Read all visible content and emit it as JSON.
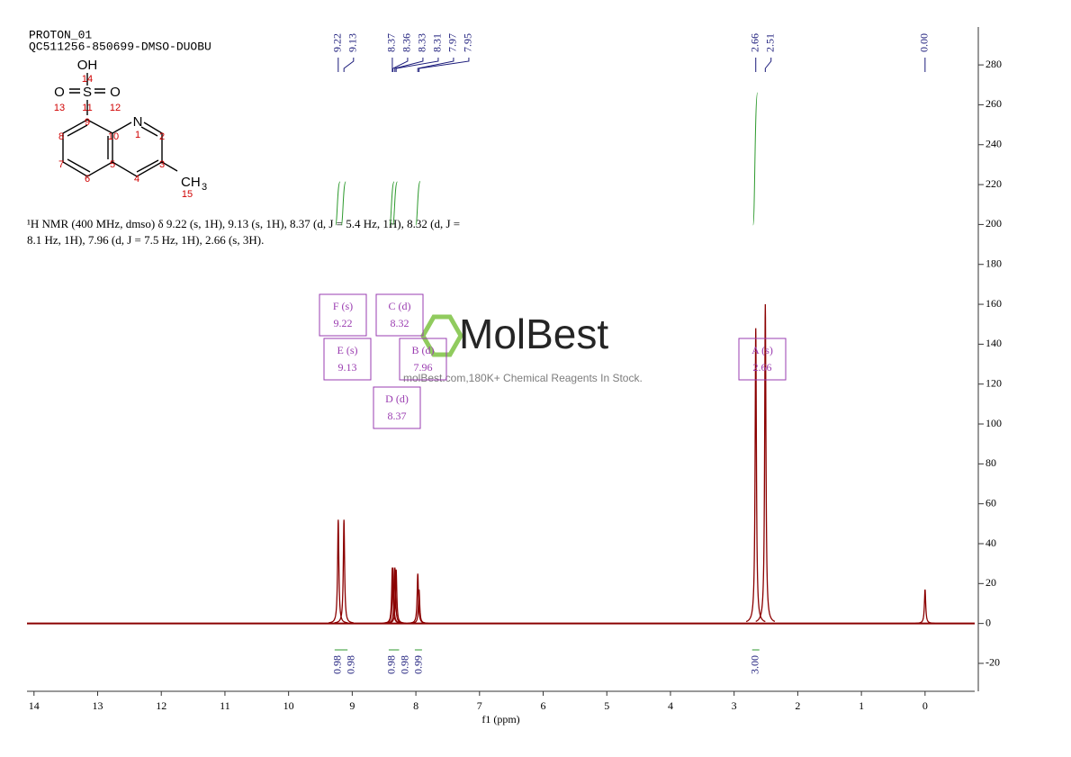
{
  "header": {
    "title": "PROTON_01",
    "subtitle": "QC511256-850699-DMSO-DUOBU"
  },
  "description": {
    "lines": [
      "¹H NMR (400 MHz, dmso) δ 9.22 (s, 1H), 9.13 (s, 1H), 8.37 (d, J = 5.4 Hz, 1H), 8.32 (d, J =",
      "8.1 Hz, 1H), 7.96 (d, J = 7.5 Hz, 1H), 2.66 (s, 3H)."
    ]
  },
  "structure": {
    "atoms": [
      "OH",
      "S",
      "O",
      "O",
      "N",
      "CH",
      "3"
    ],
    "numbers": [
      14,
      11,
      13,
      12,
      9,
      10,
      1,
      2,
      8,
      7,
      5,
      3,
      6,
      4,
      15
    ]
  },
  "watermark": {
    "brand": "MolBest",
    "tagline": "molBest.com,180K+ Chemical Reagents In Stock."
  },
  "chart_data": {
    "type": "nmr",
    "xlabel": "f1 (ppm)",
    "xlim": [
      14.11,
      -0.78
    ],
    "xticks": [
      14,
      13,
      12,
      11,
      10,
      9,
      8,
      7,
      6,
      5,
      4,
      3,
      2,
      1,
      0
    ],
    "ylim": [
      -34,
      299
    ],
    "yticks": [
      -20,
      0,
      20,
      40,
      60,
      80,
      100,
      120,
      140,
      160,
      180,
      200,
      220,
      240,
      260,
      280
    ],
    "peaks": {
      "x": [
        9.22,
        9.13,
        8.37,
        8.36,
        8.33,
        8.31,
        7.97,
        7.95,
        2.66,
        2.51,
        0
      ],
      "values": [
        52,
        52,
        28,
        28,
        28,
        27,
        25,
        17,
        148,
        160,
        17
      ],
      "labels": [
        9.22,
        9.13,
        8.37,
        8.36,
        8.33,
        8.31,
        7.97,
        7.95,
        2.66,
        2.51,
        {
          "value": 0,
          "label": "0.00"
        }
      ]
    },
    "integrals": {
      "x": [
        9.22,
        9.13,
        8.37,
        8.32,
        7.96,
        2.66
      ],
      "values": [
        0.98,
        0.98,
        0.98,
        0.98,
        0.99,
        3
      ],
      "value_labels": [
        "0.98",
        "0.98",
        "0.98",
        "0.98",
        "0.99",
        "3.00"
      ]
    },
    "multiplets": [
      {
        "label": "F (s)",
        "shift": 9.22
      },
      {
        "label": "E (s)",
        "shift": 9.13
      },
      {
        "label": "C (d)",
        "shift": 8.32
      },
      {
        "label": "B (d)",
        "shift": 7.96
      },
      {
        "label": "D (d)",
        "shift": 8.37
      },
      {
        "label": "A (s)",
        "shift": 2.66
      }
    ],
    "color": "#8b0000",
    "label_color": "#1a1a7a",
    "integral_color": "#2e9a2e",
    "multiplet_color": "#9a3cb0"
  }
}
